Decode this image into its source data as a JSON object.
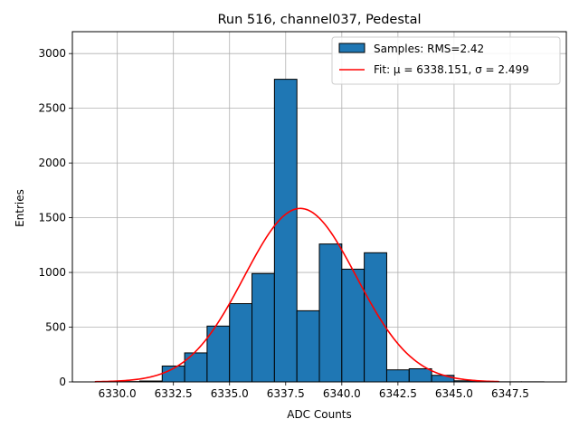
{
  "chart_data": {
    "type": "bar",
    "title": "Run 516, channel037, Pedestal",
    "xlabel": "ADC Counts",
    "ylabel": "Entries",
    "xlim": [
      6328.0,
      6350.0
    ],
    "ylim": [
      0,
      3200
    ],
    "xticks": [
      6330.0,
      6332.5,
      6335.0,
      6337.5,
      6340.0,
      6342.5,
      6345.0,
      6347.5
    ],
    "xtick_labels": [
      "6330.0",
      "6332.5",
      "6335.0",
      "6337.5",
      "6340.0",
      "6342.5",
      "6345.0",
      "6347.5"
    ],
    "yticks": [
      0,
      500,
      1000,
      1500,
      2000,
      2500,
      3000
    ],
    "ytick_labels": [
      "0",
      "500",
      "1000",
      "1500",
      "2000",
      "2500",
      "3000"
    ],
    "grid": true,
    "legend_position": "top-right",
    "histogram": {
      "name": "Samples: RMS=2.42",
      "color": "#1f77b4",
      "edgecolor": "#000000",
      "bin_edges": [
        6330.0,
        6331.0,
        6332.0,
        6333.0,
        6334.0,
        6335.0,
        6336.0,
        6337.0,
        6338.0,
        6339.0,
        6340.0,
        6341.0,
        6342.0,
        6343.0,
        6344.0,
        6345.0,
        6346.0,
        6347.0,
        6348.0,
        6349.0
      ],
      "counts": [
        3,
        8,
        145,
        265,
        510,
        715,
        990,
        2765,
        650,
        1260,
        1030,
        1180,
        110,
        120,
        60,
        10,
        2,
        1,
        1
      ]
    },
    "fit": {
      "name": "Fit: μ = 6338.151, σ = 2.499",
      "color": "#ff0000",
      "mu": 6338.151,
      "sigma": 2.499,
      "amplitude": 1585,
      "x_range": [
        6329.0,
        6347.0
      ]
    },
    "legend": [
      {
        "label": "Samples: RMS=2.42",
        "kind": "patch",
        "color": "#1f77b4"
      },
      {
        "label": "Fit: μ = 6338.151, σ = 2.499",
        "kind": "line",
        "color": "#ff0000"
      }
    ]
  }
}
